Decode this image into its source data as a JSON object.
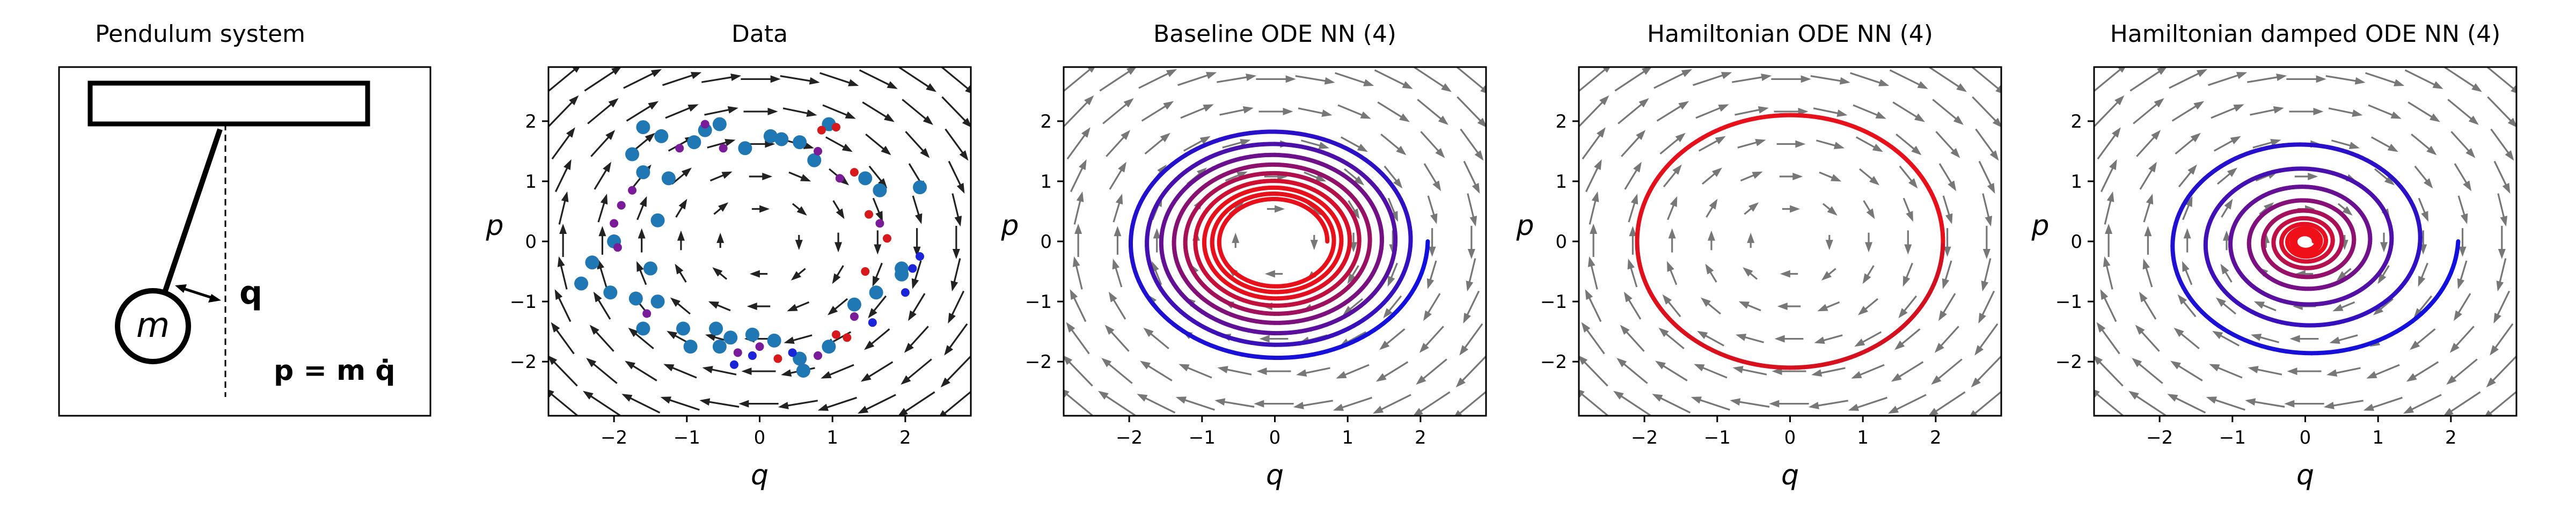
{
  "pendulum": {
    "title": "Pendulum system",
    "mass_label": "m",
    "q_label": "q",
    "momentum_eq": "p = m q̇"
  },
  "chart_data": [
    {
      "type": "scatter",
      "title": "Data",
      "xlabel": "q",
      "ylabel": "p",
      "xlim": [
        -2.9,
        2.9
      ],
      "ylim": [
        -2.9,
        2.9
      ],
      "xticks": [
        -2,
        -1,
        0,
        1,
        2
      ],
      "yticks": [
        -2,
        -1,
        0,
        1,
        2
      ],
      "grid": false,
      "vector_field": "dark",
      "series": [
        {
          "color": "#1f77b4",
          "marker_size": "large",
          "points": [
            [
              -1.6,
              1.9
            ],
            [
              -1.35,
              1.75
            ],
            [
              -0.75,
              1.85
            ],
            [
              -0.55,
              1.95
            ],
            [
              -0.2,
              1.55
            ],
            [
              0.15,
              1.75
            ],
            [
              0.3,
              1.7
            ],
            [
              0.55,
              1.65
            ],
            [
              0.75,
              1.35
            ],
            [
              0.95,
              1.95
            ],
            [
              1.45,
              1.05
            ],
            [
              1.65,
              0.85
            ],
            [
              2.2,
              0.9
            ],
            [
              -1.6,
              1.15
            ],
            [
              -1.25,
              1.05
            ],
            [
              -1.4,
              0.35
            ],
            [
              -2.0,
              0.0
            ],
            [
              -2.3,
              -0.35
            ],
            [
              -1.5,
              -0.45
            ],
            [
              -2.45,
              -0.7
            ],
            [
              -2.05,
              -0.85
            ],
            [
              -1.7,
              -0.95
            ],
            [
              -1.4,
              -1.0
            ],
            [
              -1.6,
              -1.45
            ],
            [
              -1.05,
              -1.45
            ],
            [
              -0.6,
              -1.45
            ],
            [
              -0.4,
              -1.6
            ],
            [
              -0.95,
              -1.75
            ],
            [
              -0.55,
              -1.75
            ],
            [
              -0.1,
              -1.55
            ],
            [
              0.2,
              -1.65
            ],
            [
              0.55,
              -1.95
            ],
            [
              0.6,
              -2.15
            ],
            [
              0.95,
              -1.75
            ],
            [
              1.3,
              -1.05
            ],
            [
              1.6,
              -0.85
            ],
            [
              1.95,
              -0.55
            ],
            [
              1.95,
              -0.45
            ],
            [
              -1.75,
              1.45
            ],
            [
              -0.9,
              1.65
            ]
          ]
        },
        {
          "color": "#7a1b9a",
          "marker_size": "small",
          "points": [
            [
              -2.0,
              0.3
            ],
            [
              -1.9,
              0.6
            ],
            [
              -1.75,
              0.85
            ],
            [
              -1.95,
              -0.1
            ],
            [
              -1.55,
              -1.2
            ],
            [
              -0.75,
              1.95
            ],
            [
              -0.5,
              1.55
            ],
            [
              0.8,
              1.5
            ],
            [
              1.1,
              1.05
            ],
            [
              1.65,
              0.3
            ],
            [
              -0.3,
              -1.85
            ],
            [
              0.0,
              -1.75
            ],
            [
              0.8,
              -1.9
            ],
            [
              1.3,
              -1.25
            ],
            [
              -1.1,
              1.55
            ]
          ]
        },
        {
          "color": "#d7191c",
          "marker_size": "small",
          "points": [
            [
              0.85,
              1.85
            ],
            [
              1.05,
              1.9
            ],
            [
              1.3,
              1.15
            ],
            [
              1.5,
              0.45
            ],
            [
              1.75,
              0.05
            ],
            [
              1.45,
              -0.5
            ],
            [
              1.05,
              -1.55
            ],
            [
              0.25,
              -1.95
            ],
            [
              1.2,
              -1.6
            ]
          ]
        },
        {
          "color": "#1a24d8",
          "marker_size": "small",
          "points": [
            [
              2.1,
              -0.45
            ],
            [
              2.2,
              -0.25
            ],
            [
              2.0,
              -0.85
            ],
            [
              1.55,
              -1.35
            ],
            [
              0.45,
              -1.85
            ],
            [
              -0.1,
              -1.9
            ],
            [
              -0.35,
              -2.05
            ]
          ]
        }
      ]
    },
    {
      "type": "line",
      "title": "Baseline ODE NN (4)",
      "xlabel": "q",
      "ylabel": "p",
      "xlim": [
        -2.9,
        2.9
      ],
      "ylim": [
        -2.9,
        2.9
      ],
      "xticks": [
        -2,
        -1,
        0,
        1,
        2
      ],
      "yticks": [
        -2,
        -1,
        0,
        1,
        2
      ],
      "grid": false,
      "vector_field": "gray",
      "series": [
        {
          "name": "trajectory",
          "start": [
            2.1,
            0.0
          ],
          "end_radius": 0.72,
          "turns": 9,
          "color_start": "#1010e0",
          "color_end": "#e8101a"
        }
      ]
    },
    {
      "type": "line",
      "title": "Hamiltonian ODE NN (4)",
      "xlabel": "q",
      "ylabel": "p",
      "xlim": [
        -2.9,
        2.9
      ],
      "ylim": [
        -2.9,
        2.9
      ],
      "xticks": [
        -2,
        -1,
        0,
        1,
        2
      ],
      "yticks": [
        -2,
        -1,
        0,
        1,
        2
      ],
      "grid": false,
      "vector_field": "gray",
      "series": [
        {
          "name": "trajectory",
          "start": [
            2.1,
            0.0
          ],
          "end_radius": 2.1,
          "turns": 1,
          "color_start": "#d01020",
          "color_end": "#e8101a"
        }
      ]
    },
    {
      "type": "line",
      "title": "Hamiltonian damped ODE NN (4)",
      "xlabel": "q",
      "ylabel": "p",
      "xlim": [
        -2.9,
        2.9
      ],
      "ylim": [
        -2.9,
        2.9
      ],
      "xticks": [
        -2,
        -1,
        0,
        1,
        2
      ],
      "yticks": [
        -2,
        -1,
        0,
        1,
        2
      ],
      "grid": false,
      "vector_field": "gray",
      "series": [
        {
          "name": "trajectory",
          "start": [
            2.1,
            0.0
          ],
          "end_radius": 0.12,
          "turns": 10,
          "color_start": "#1010e0",
          "color_end": "#f0101a"
        }
      ]
    }
  ]
}
